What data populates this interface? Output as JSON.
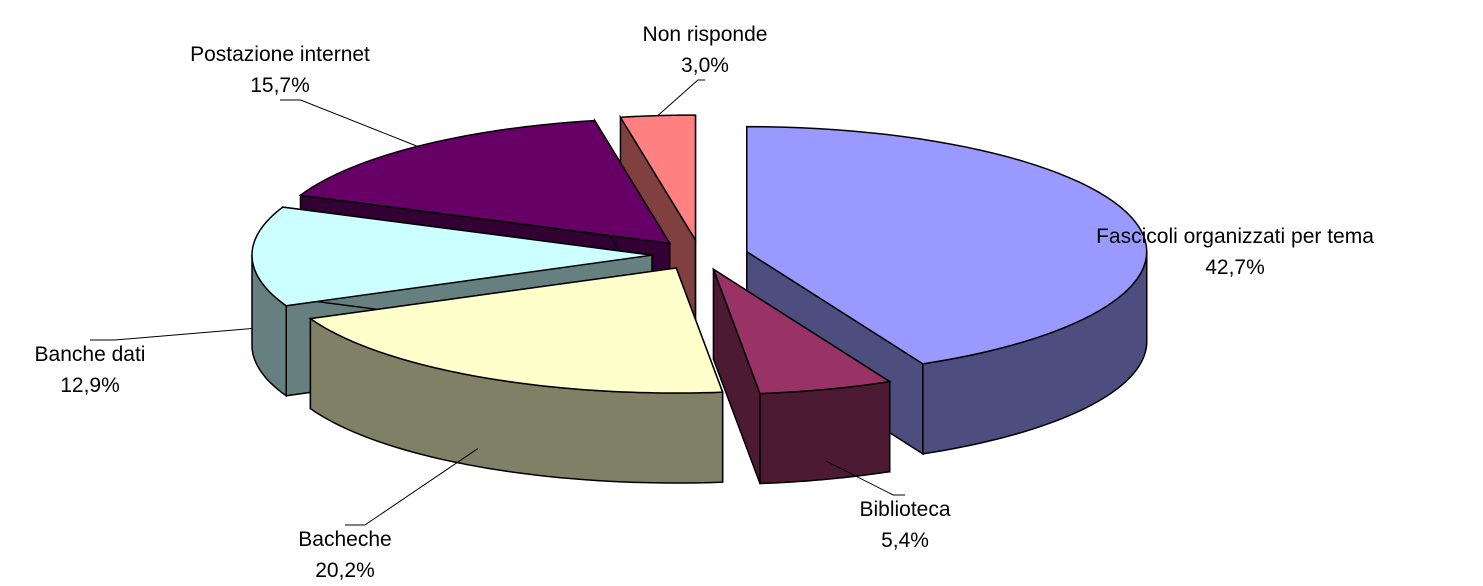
{
  "chart_data": {
    "type": "pie",
    "categories": [
      "Fascicoli organizzati per tema",
      "Biblioteca",
      "Bacheche",
      "Banche dati",
      "Postazione internet",
      "Non risponde"
    ],
    "values": [
      42.7,
      5.4,
      20.2,
      12.9,
      15.7,
      3.0
    ],
    "value_labels": [
      "42,7%",
      "5,4%",
      "20,2%",
      "12,9%",
      "15,7%",
      "3,0%"
    ],
    "colors": [
      "#9999ff",
      "#993366",
      "#ffffcc",
      "#ccffff",
      "#660066",
      "#ff8080"
    ]
  }
}
